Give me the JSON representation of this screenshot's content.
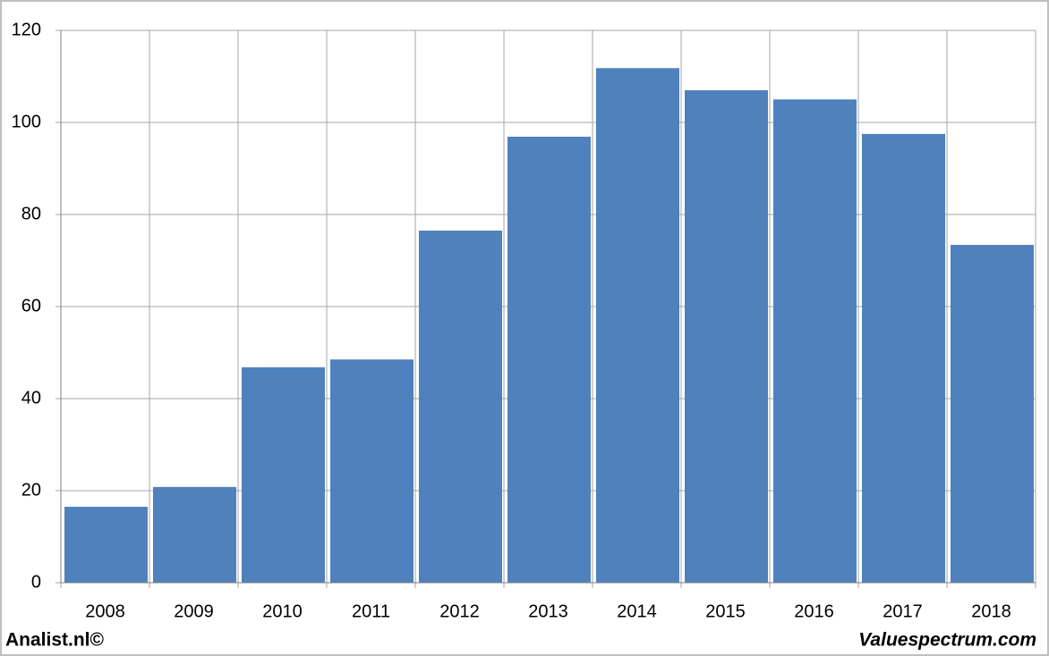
{
  "chart_data": {
    "type": "bar",
    "categories": [
      "2008",
      "2009",
      "2010",
      "2011",
      "2012",
      "2013",
      "2014",
      "2015",
      "2016",
      "2017",
      "2018"
    ],
    "values": [
      16.5,
      20.8,
      46.8,
      48.5,
      76.5,
      96.9,
      111.8,
      107.0,
      105.0,
      97.5,
      73.4
    ],
    "color": "#4f81bd",
    "ylim": [
      0,
      120
    ],
    "yticks": [
      0,
      20,
      40,
      60,
      80,
      100,
      120
    ],
    "grid": true,
    "source": "Analist.nl©",
    "credit": "Valuespectrum.com"
  }
}
